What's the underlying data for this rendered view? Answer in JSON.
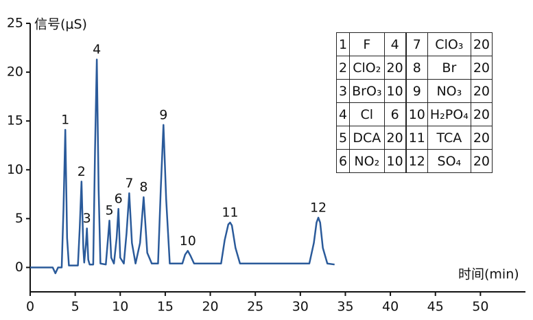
{
  "chart_data": {
    "type": "line",
    "y_label": "信号(μS)",
    "x_label": "时间(min)",
    "xlim": [
      0,
      55
    ],
    "ylim": [
      -2.5,
      25
    ],
    "xticks": [
      0,
      5,
      10,
      15,
      20,
      25,
      30,
      35,
      40,
      45,
      50
    ],
    "yticks": [
      0,
      5,
      10,
      15,
      20,
      25
    ],
    "x": [
      0,
      2.5,
      2.8,
      3.1,
      3.5,
      3.7,
      3.9,
      4.1,
      4.3,
      5.3,
      5.5,
      5.7,
      5.9,
      6.0,
      6.2,
      6.3,
      6.45,
      6.6,
      7.0,
      7.2,
      7.4,
      7.6,
      7.8,
      8.4,
      8.6,
      8.8,
      9.0,
      9.3,
      9.6,
      9.8,
      10.0,
      10.4,
      10.7,
      11.0,
      11.3,
      11.7,
      12.2,
      12.6,
      13.0,
      13.5,
      14.2,
      14.5,
      14.8,
      15.1,
      15.5,
      16.9,
      17.2,
      17.5,
      17.8,
      18.2,
      21.2,
      21.6,
      22.0,
      22.2,
      22.4,
      22.8,
      23.3,
      31.0,
      31.5,
      31.8,
      32.0,
      32.2,
      32.5,
      33.0,
      33.8
    ],
    "series": [
      {
        "color": "#2a5a9a",
        "values": [
          0,
          0,
          -0.6,
          0,
          0,
          6,
          14.1,
          3,
          0.2,
          0.2,
          4,
          8.8,
          2,
          0.5,
          2.5,
          4.0,
          0.8,
          0.3,
          0.3,
          12,
          21.3,
          8,
          0.4,
          0.3,
          2.5,
          4.8,
          1,
          0.4,
          3,
          6.0,
          1,
          0.4,
          3.5,
          7.6,
          2.5,
          0.4,
          2.5,
          7.2,
          1.5,
          0.4,
          0.4,
          8,
          14.6,
          7,
          0.4,
          0.4,
          1.3,
          1.7,
          1.2,
          0.4,
          0.4,
          2.8,
          4.4,
          4.6,
          4.3,
          2,
          0.4,
          0.4,
          2.5,
          4.6,
          5.1,
          4.6,
          2,
          0.4,
          0.3
        ]
      }
    ],
    "peak_labels": [
      {
        "text": "1",
        "x": 3.9,
        "y": 14.1
      },
      {
        "text": "2",
        "x": 5.7,
        "y": 8.8
      },
      {
        "text": "3",
        "x": 6.3,
        "y": 4.0
      },
      {
        "text": "4",
        "x": 7.4,
        "y": 21.3
      },
      {
        "text": "5",
        "x": 8.8,
        "y": 4.8
      },
      {
        "text": "6",
        "x": 9.8,
        "y": 6.0
      },
      {
        "text": "7",
        "x": 11.0,
        "y": 7.6
      },
      {
        "text": "8",
        "x": 12.6,
        "y": 7.2
      },
      {
        "text": "9",
        "x": 14.8,
        "y": 14.6
      },
      {
        "text": "10",
        "x": 17.5,
        "y": 1.7
      },
      {
        "text": "11",
        "x": 22.2,
        "y": 4.6
      },
      {
        "text": "12",
        "x": 32.0,
        "y": 5.1
      }
    ]
  },
  "table": {
    "rows": [
      [
        "1",
        "F",
        "4",
        "7",
        "ClO₃",
        "20"
      ],
      [
        "2",
        "ClO₂",
        "20",
        "8",
        "Br",
        "20"
      ],
      [
        "3",
        "BrO₃",
        "10",
        "9",
        "NO₃",
        "20"
      ],
      [
        "4",
        "Cl",
        "6",
        "10",
        "H₂PO₄",
        "20"
      ],
      [
        "5",
        "DCA",
        "20",
        "11",
        "TCA",
        "20"
      ],
      [
        "6",
        "NO₂",
        "10",
        "12",
        "SO₄",
        "20"
      ]
    ]
  }
}
